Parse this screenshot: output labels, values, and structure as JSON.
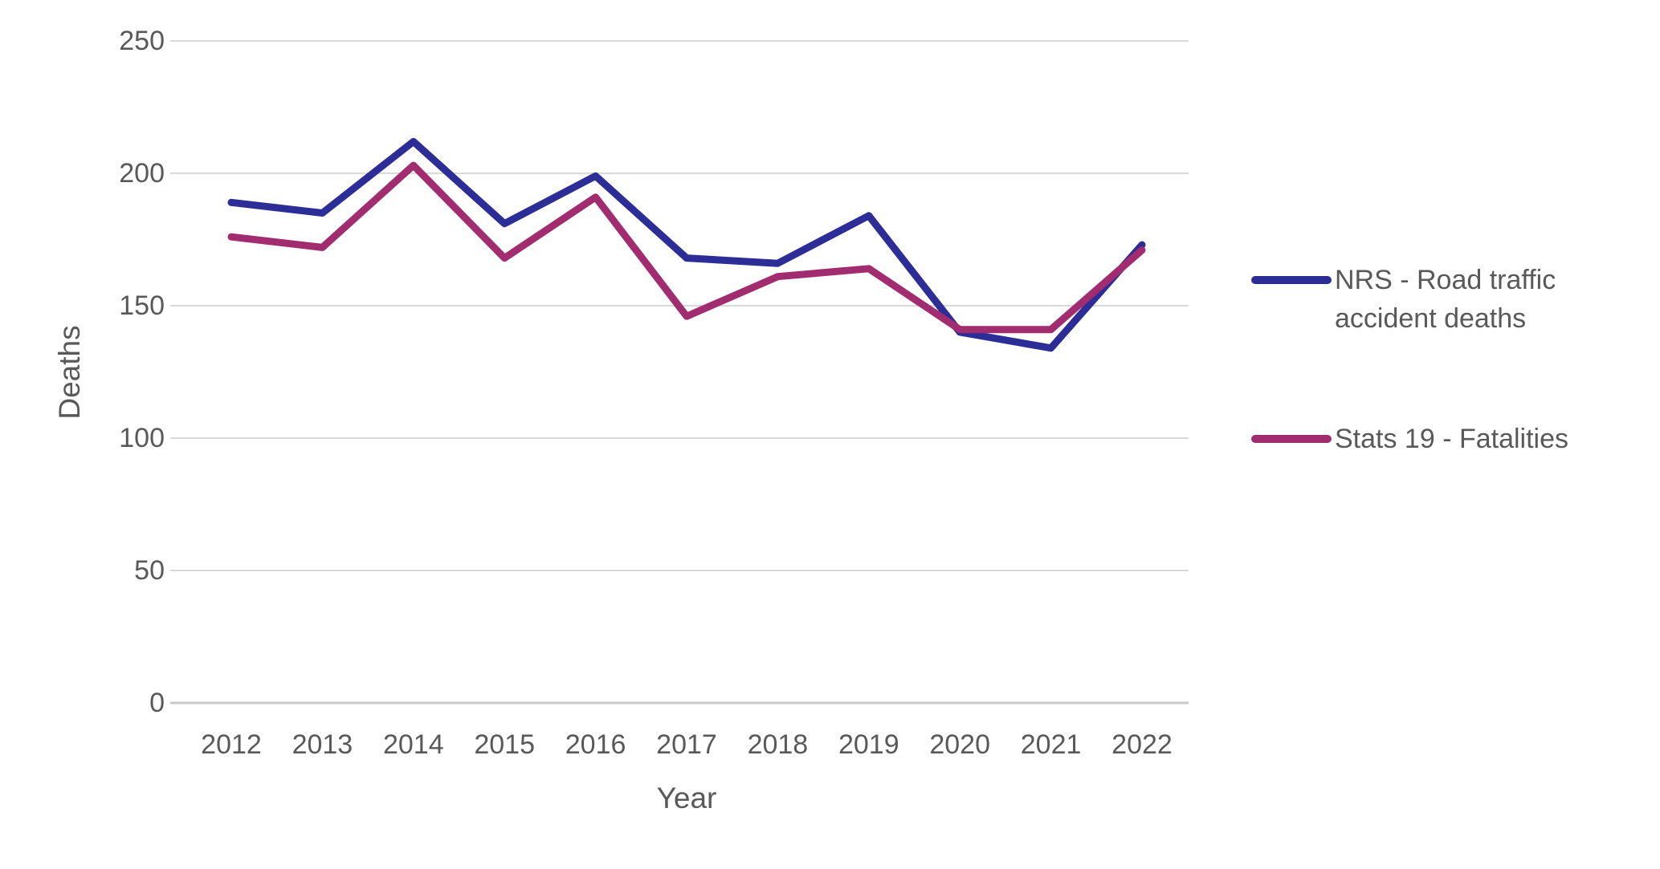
{
  "chart_data": {
    "type": "line",
    "title": "",
    "xlabel": "Year",
    "ylabel": "Deaths",
    "x": [
      2012,
      2013,
      2014,
      2015,
      2016,
      2017,
      2018,
      2019,
      2020,
      2021,
      2022
    ],
    "yticks": [
      0,
      50,
      100,
      150,
      200,
      250
    ],
    "ylim": [
      0,
      250
    ],
    "grid": "horizontal-gridlines-on",
    "legend_position": "right-center",
    "series": [
      {
        "name": "NRS - Road traffic accident deaths",
        "color": "#2C2D96",
        "values": [
          189,
          185,
          212,
          181,
          199,
          168,
          166,
          184,
          140,
          134,
          173
        ]
      },
      {
        "name": "Stats 19 - Fatalities",
        "color": "#A12C70",
        "values": [
          176,
          172,
          203,
          168,
          191,
          146,
          161,
          164,
          141,
          141,
          171
        ]
      }
    ],
    "colors": {
      "gridline": "#D9D9D9",
      "axis_line": "#C9C9C9",
      "text": "#595959",
      "background": "#FFFFFF"
    }
  }
}
